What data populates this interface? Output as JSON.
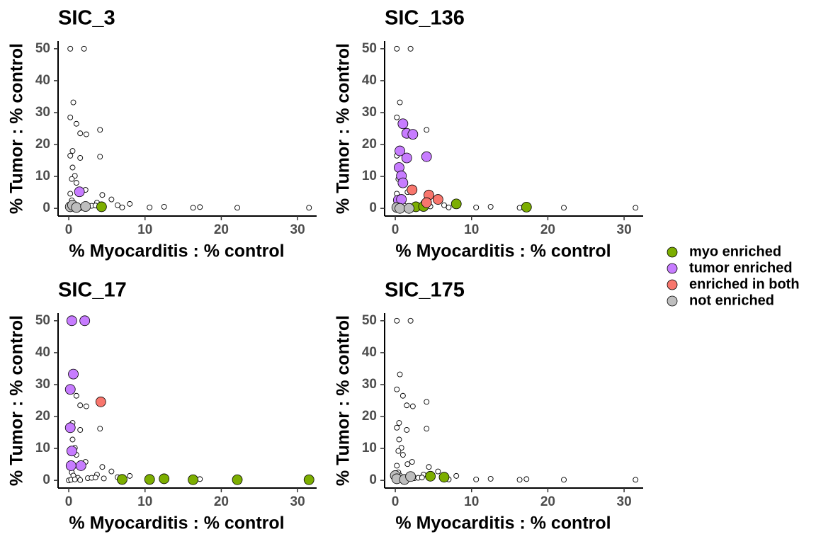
{
  "legend": [
    {
      "name": "myo enriched",
      "color": "#7cae00"
    },
    {
      "name": "tumor enriched",
      "color": "#c77cff"
    },
    {
      "name": "enriched in both",
      "color": "#f8766d"
    },
    {
      "name": "not enriched",
      "color": "#bebebe"
    }
  ],
  "chart_data": [
    {
      "type": "scatter",
      "title": "SIC_3",
      "xlabel": "% Myocarditis : % control",
      "ylabel": "% Tumor : % control",
      "xlim": [
        -1.4,
        32.5
      ],
      "ylim": [
        -2.4,
        52.4
      ],
      "xticks": [
        0,
        10,
        20,
        30
      ],
      "yticks": [
        0,
        10,
        20,
        30,
        40,
        50
      ],
      "series": [
        {
          "color": "#ffffff",
          "x": [
            0.2,
            2,
            0.6,
            0.2,
            1,
            1.5,
            2.3,
            4.1,
            0.5,
            0.2,
            1.5,
            4.1,
            0.5,
            0.8,
            0.4,
            1,
            0.2,
            1.6,
            2.2,
            4.4,
            5.6,
            3.7,
            0.4,
            0.6,
            1.2,
            2.5,
            3,
            3.5,
            6.4,
            7,
            8,
            10.6,
            12.5,
            16.3,
            17.2,
            22.1,
            31.5,
            0,
            0.3,
            0.8,
            1.5,
            4.6
          ],
          "values": [
            50,
            50,
            33.2,
            28.5,
            26.5,
            23.5,
            23.2,
            24.6,
            18,
            16.5,
            15.8,
            16.2,
            12.8,
            10.2,
            9.2,
            8,
            4.6,
            5.1,
            5.8,
            4.2,
            2.8,
            1.8,
            2.5,
            1.5,
            0.8,
            0.7,
            0.8,
            0.9,
            1,
            0.3,
            1.4,
            0.3,
            0.5,
            0.2,
            0.4,
            0.2,
            0.2,
            0,
            0.2,
            0.3,
            0.1,
            0.6
          ]
        },
        {
          "color": "#7cae00",
          "x": [
            4.3
          ],
          "values": [
            0.5
          ]
        },
        {
          "color": "#c77cff",
          "x": [
            1.4
          ],
          "values": [
            5.2
          ]
        },
        {
          "color": "#bebebe",
          "x": [
            0.2,
            0.5,
            1,
            2.2
          ],
          "values": [
            0.5,
            1,
            0.3,
            0.6
          ]
        }
      ]
    },
    {
      "type": "scatter",
      "title": "SIC_136",
      "xlabel": "% Myocarditis : % control",
      "ylabel": "% Tumor : % control",
      "xlim": [
        -1.4,
        32.5
      ],
      "ylim": [
        -2.4,
        52.4
      ],
      "xticks": [
        0,
        10,
        20,
        30
      ],
      "yticks": [
        0,
        10,
        20,
        30,
        40,
        50
      ],
      "series": [
        {
          "color": "#ffffff",
          "x": [
            0.2,
            2,
            0.6,
            0.2,
            1,
            1.5,
            2.3,
            4.1,
            0.5,
            0.2,
            1.5,
            4.1,
            0.5,
            0.8,
            0.4,
            1,
            0.2,
            1.6,
            2.2,
            4.4,
            5.6,
            3.7,
            0.4,
            0.6,
            1.2,
            2.5,
            3,
            3.5,
            6.4,
            7,
            8,
            10.6,
            12.5,
            16.3,
            17.2,
            22.1,
            31.5,
            0,
            0.3,
            0.8,
            1.5,
            4.6
          ],
          "values": [
            50,
            50,
            33.2,
            28.5,
            26.5,
            23.5,
            23.2,
            24.6,
            18,
            16.5,
            15.8,
            16.2,
            12.8,
            10.2,
            9.2,
            8,
            4.6,
            5.1,
            5.8,
            4.2,
            2.8,
            1.8,
            2.5,
            1.5,
            0.8,
            0.7,
            0.8,
            0.9,
            1,
            0.3,
            1.4,
            0.3,
            0.5,
            0.2,
            0.4,
            0.2,
            0.2,
            0,
            0.2,
            0.3,
            0.1,
            0.6
          ]
        },
        {
          "color": "#7cae00",
          "x": [
            8,
            17.2,
            2.7,
            3.7
          ],
          "values": [
            1.4,
            0.4,
            0.5,
            0.6
          ]
        },
        {
          "color": "#c77cff",
          "x": [
            1,
            1.5,
            2.3,
            4.1,
            0.6,
            1.5,
            0.5,
            0.8,
            1,
            0.4,
            0.8
          ],
          "values": [
            26.5,
            23.5,
            23.2,
            16.2,
            18,
            15.8,
            12.8,
            10.2,
            8,
            2.6,
            2.8
          ]
        },
        {
          "color": "#f8766d",
          "x": [
            2.2,
            4.4,
            5.6,
            4.1
          ],
          "values": [
            5.8,
            4.2,
            2.8,
            1.8
          ]
        },
        {
          "color": "#bebebe",
          "x": [
            0.2,
            0.6,
            1.8
          ],
          "values": [
            0.3,
            0,
            0
          ]
        }
      ]
    },
    {
      "type": "scatter",
      "title": "SIC_17",
      "xlabel": "% Myocarditis : % control",
      "ylabel": "% Tumor : % control",
      "xlim": [
        -1.4,
        32.5
      ],
      "ylim": [
        -2.4,
        52.4
      ],
      "xticks": [
        0,
        10,
        20,
        30
      ],
      "yticks": [
        0,
        10,
        20,
        30,
        40,
        50
      ],
      "series": [
        {
          "color": "#ffffff",
          "x": [
            0.2,
            2,
            0.6,
            0.2,
            1,
            1.5,
            2.3,
            4.1,
            0.5,
            0.2,
            1.5,
            4.1,
            0.5,
            0.8,
            0.4,
            1,
            0.2,
            1.6,
            2.2,
            4.4,
            5.6,
            3.7,
            0.4,
            0.6,
            1.2,
            2.5,
            3,
            3.5,
            6.4,
            7,
            8,
            10.6,
            12.5,
            16.3,
            17.2,
            22.1,
            31.5,
            0,
            0.3,
            0.8,
            1.5,
            4.6
          ],
          "values": [
            50,
            50,
            33.2,
            28.5,
            26.5,
            23.5,
            23.2,
            24.6,
            18,
            16.5,
            15.8,
            16.2,
            12.8,
            10.2,
            9.2,
            8,
            4.6,
            5.1,
            5.8,
            4.2,
            2.8,
            1.8,
            2.5,
            1.5,
            0.8,
            0.7,
            0.8,
            0.9,
            1,
            0.3,
            1.4,
            0.3,
            0.5,
            0.2,
            0.4,
            0.2,
            0.2,
            0,
            0.2,
            0.3,
            0.1,
            0.6
          ]
        },
        {
          "color": "#7cae00",
          "x": [
            7,
            10.6,
            12.5,
            16.3,
            22.1,
            31.5
          ],
          "values": [
            0.3,
            0.3,
            0.5,
            0.2,
            0.2,
            0.2
          ]
        },
        {
          "color": "#c77cff",
          "x": [
            0.4,
            2.1,
            0.6,
            0.2,
            0.2,
            0.4,
            0.3,
            1.6
          ],
          "values": [
            50,
            50,
            33.3,
            28.5,
            16.5,
            9.2,
            4.6,
            4.6
          ]
        },
        {
          "color": "#f8766d",
          "x": [
            4.2
          ],
          "values": [
            24.6
          ]
        }
      ]
    },
    {
      "type": "scatter",
      "title": "SIC_175",
      "xlabel": "% Myocarditis : % control",
      "ylabel": "% Tumor : % control",
      "xlim": [
        -1.4,
        32.5
      ],
      "ylim": [
        -2.4,
        52.4
      ],
      "xticks": [
        0,
        10,
        20,
        30
      ],
      "yticks": [
        0,
        10,
        20,
        30,
        40,
        50
      ],
      "series": [
        {
          "color": "#ffffff",
          "x": [
            0.2,
            2,
            0.6,
            0.2,
            1,
            1.5,
            2.3,
            4.1,
            0.5,
            0.2,
            1.5,
            4.1,
            0.5,
            0.8,
            0.4,
            1,
            0.2,
            1.6,
            2.2,
            4.4,
            5.6,
            3.7,
            0.4,
            0.6,
            1.2,
            2.5,
            3,
            3.5,
            6.4,
            7,
            8,
            10.6,
            12.5,
            16.3,
            17.2,
            22.1,
            31.5,
            0,
            0.3,
            0.8,
            1.5,
            4.6
          ],
          "values": [
            50,
            50,
            33.2,
            28.5,
            26.5,
            23.5,
            23.2,
            24.6,
            18,
            16.5,
            15.8,
            16.2,
            12.8,
            10.2,
            9.2,
            8,
            4.6,
            5.1,
            5.8,
            4.2,
            2.8,
            1.8,
            2.5,
            1.5,
            0.8,
            0.7,
            0.8,
            0.9,
            1,
            0.3,
            1.4,
            0.3,
            0.5,
            0.2,
            0.4,
            0.2,
            0.2,
            0,
            0.2,
            0.3,
            0.1,
            0.6
          ]
        },
        {
          "color": "#7cae00",
          "x": [
            4.6,
            6.4
          ],
          "values": [
            1.3,
            1
          ]
        },
        {
          "color": "#bebebe",
          "x": [
            0,
            0.2,
            1.2,
            2
          ],
          "values": [
            1.5,
            0.5,
            0.3,
            1.2
          ]
        }
      ]
    }
  ]
}
